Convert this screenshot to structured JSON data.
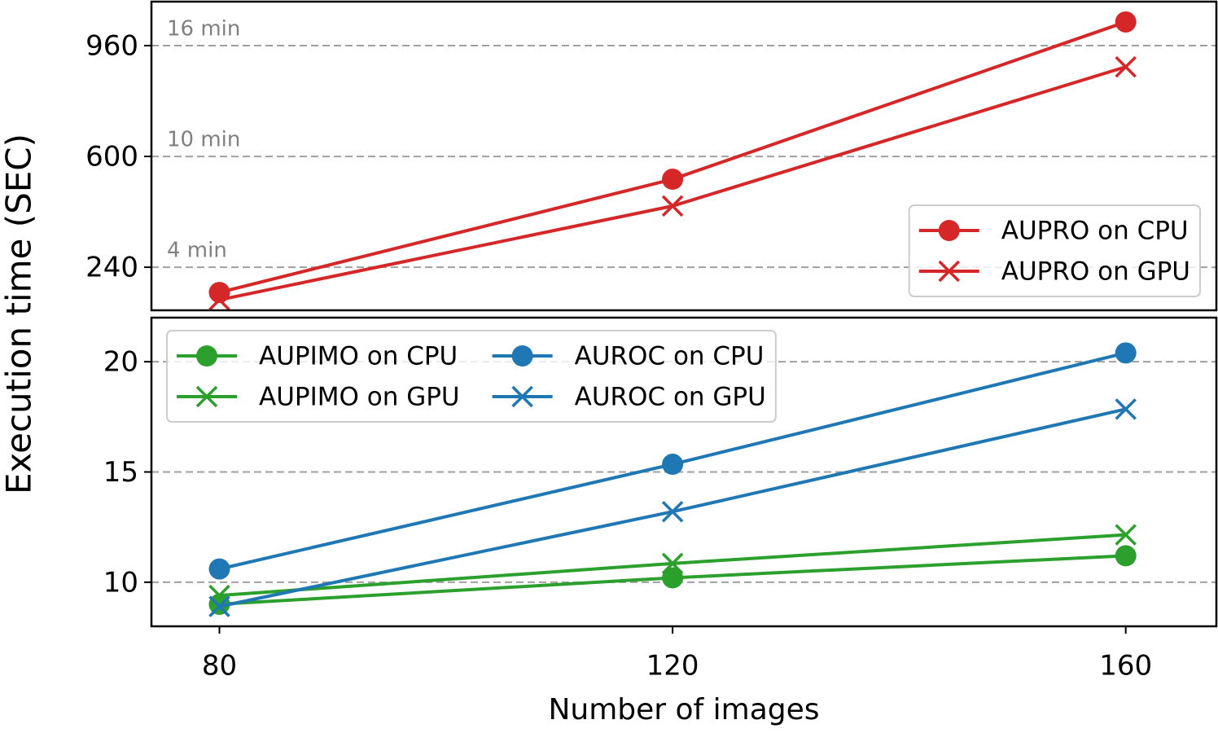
{
  "chart_data": [
    {
      "type": "line",
      "ylabel": "Execution time (SEC)",
      "x": [
        80,
        120,
        160
      ],
      "xlim": [
        74,
        168
      ],
      "ylim": [
        100,
        1103
      ],
      "yticks": [
        240,
        600,
        960
      ],
      "tick_notes": [
        "4 min",
        "10 min",
        "16 min"
      ],
      "grid": true,
      "legend": "lower right",
      "legend_columns": 1,
      "series": [
        {
          "name": "AUPRO on CPU",
          "color": "#d62728",
          "marker": "o",
          "values": [
            158,
            526,
            1037
          ]
        },
        {
          "name": "AUPRO on GPU",
          "color": "#d62728",
          "marker": "x",
          "values": [
            134,
            439,
            891
          ]
        }
      ]
    },
    {
      "type": "line",
      "xlabel": "Number of images",
      "x": [
        80,
        120,
        160
      ],
      "xlim": [
        74,
        168
      ],
      "xticks": [
        80,
        120,
        160
      ],
      "ylim": [
        8,
        22
      ],
      "yticks": [
        10,
        15,
        20
      ],
      "grid": true,
      "legend": "upper left",
      "legend_columns": 2,
      "series": [
        {
          "name": "AUPIMO on CPU",
          "color": "#2ca02c",
          "marker": "o",
          "values": [
            9.0,
            10.2,
            11.2
          ]
        },
        {
          "name": "AUPIMO on GPU",
          "color": "#2ca02c",
          "marker": "x",
          "values": [
            9.4,
            10.85,
            12.15
          ]
        },
        {
          "name": "AUROC on CPU",
          "color": "#1f77b4",
          "marker": "o",
          "values": [
            10.6,
            15.35,
            20.4
          ]
        },
        {
          "name": "AUROC on GPU",
          "color": "#1f77b4",
          "marker": "x",
          "values": [
            8.9,
            13.2,
            17.85
          ]
        }
      ]
    }
  ]
}
